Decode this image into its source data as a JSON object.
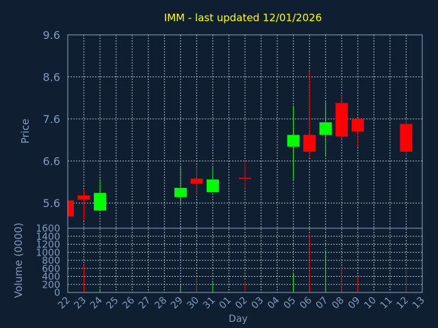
{
  "chart_data": {
    "type": "candlestick",
    "title": "IMM - last updated 12/01/2026",
    "xlabel": "Day",
    "price_panel": {
      "ylabel": "Price",
      "ylim": [
        5.0,
        9.6
      ],
      "yticks": [
        "9.6",
        "8.6",
        "7.6",
        "6.6",
        "5.6"
      ]
    },
    "volume_panel": {
      "ylabel": "Volume (0000)",
      "ylim": [
        0,
        1600
      ],
      "yticks": [
        "1600",
        "1400",
        "1200",
        "1000",
        "800",
        "600",
        "400",
        "200",
        "0"
      ]
    },
    "x_ticks": [
      "22",
      "23",
      "24",
      "25",
      "26",
      "27",
      "28",
      "29",
      "30",
      "31",
      "01",
      "02",
      "03",
      "04",
      "05",
      "06",
      "07",
      "08",
      "09",
      "10",
      "11",
      "12",
      "13"
    ],
    "candles": [
      {
        "day": "22",
        "open": 5.66,
        "close": 5.28,
        "high": 5.66,
        "low": 5.28,
        "volume": 0
      },
      {
        "day": "23",
        "open": 5.78,
        "close": 5.68,
        "high": 5.92,
        "low": 5.18,
        "volume": 680
      },
      {
        "day": "24",
        "open": 5.42,
        "close": 5.84,
        "high": 6.18,
        "low": 5.42,
        "volume": 90
      },
      {
        "day": "29",
        "open": 5.74,
        "close": 5.96,
        "high": 6.48,
        "low": 5.56,
        "volume": 220
      },
      {
        "day": "30",
        "open": 6.18,
        "close": 6.06,
        "high": 6.46,
        "low": 5.8,
        "volume": 380
      },
      {
        "day": "31",
        "open": 5.86,
        "close": 6.16,
        "high": 6.44,
        "low": 5.86,
        "volume": 250
      },
      {
        "day": "02",
        "open": 6.2,
        "close": 6.18,
        "high": 6.6,
        "low": 5.94,
        "volume": 290
      },
      {
        "day": "05",
        "open": 6.94,
        "close": 7.22,
        "high": 7.92,
        "low": 6.14,
        "volume": 480
      },
      {
        "day": "06",
        "open": 7.22,
        "close": 6.82,
        "high": 8.74,
        "low": 6.68,
        "volume": 1460
      },
      {
        "day": "07",
        "open": 7.22,
        "close": 7.52,
        "high": 8.0,
        "low": 6.7,
        "volume": 1050
      },
      {
        "day": "08",
        "open": 7.98,
        "close": 7.18,
        "high": 8.18,
        "low": 7.12,
        "volume": 640
      },
      {
        "day": "09",
        "open": 7.6,
        "close": 7.3,
        "high": 7.62,
        "low": 6.94,
        "volume": 410
      },
      {
        "day": "12",
        "open": 7.48,
        "close": 6.82,
        "high": 7.62,
        "low": 6.7,
        "volume": 620
      }
    ]
  },
  "colors": {
    "background": "#0f1e31",
    "plot_border": "#8fa6bf",
    "grid": "#b4c0cc",
    "title": "#ffff00",
    "axis_text": "#7f9bbf",
    "up": "#00ff00",
    "down": "#ff0000"
  }
}
